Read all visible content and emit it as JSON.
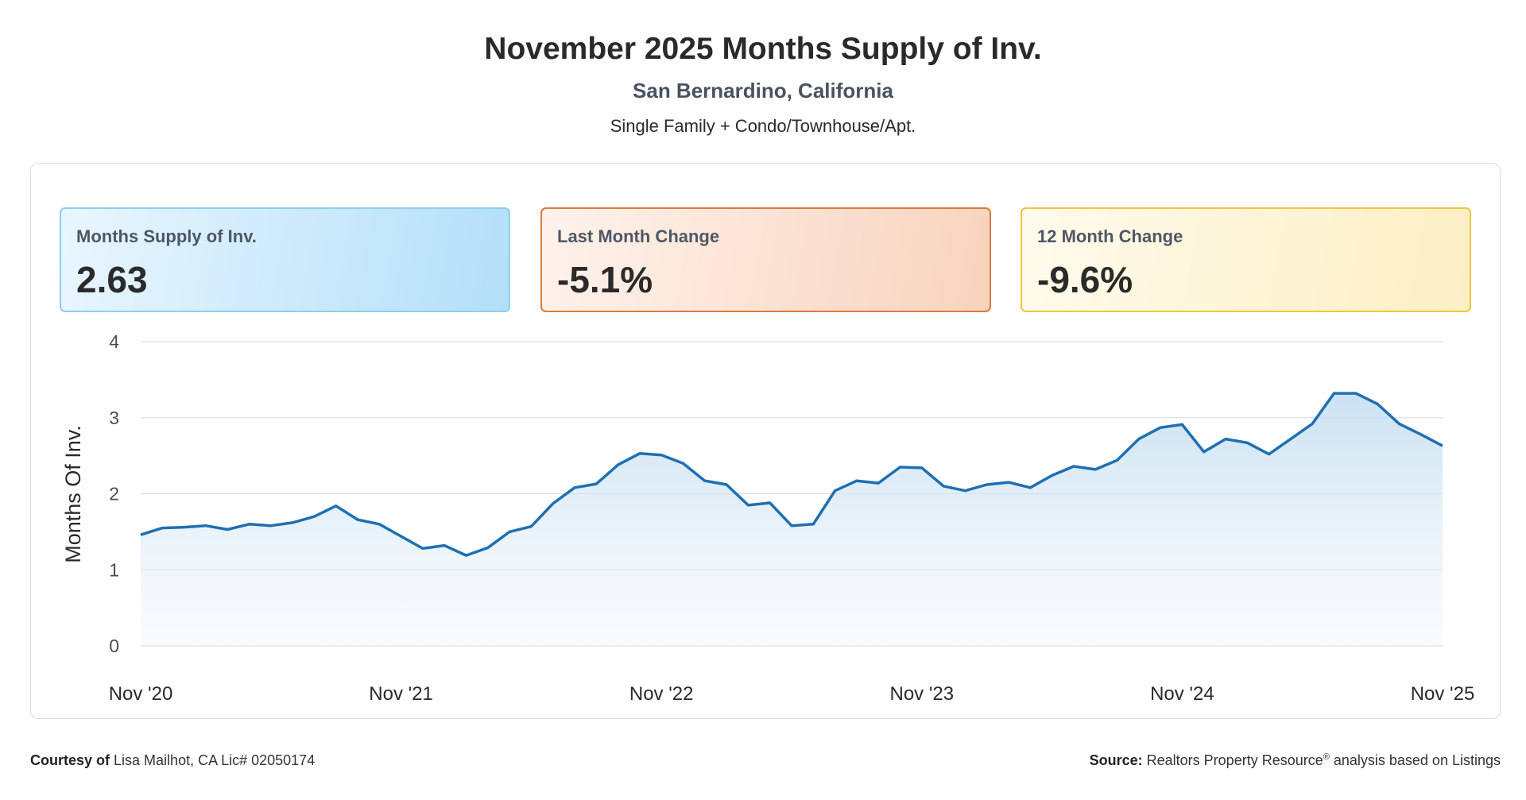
{
  "header": {
    "title": "November 2025 Months Supply of Inv.",
    "subtitle": "San Bernardino, California",
    "property_types": "Single Family + Condo/Townhouse/Apt."
  },
  "cards": [
    {
      "label": "Months Supply of Inv.",
      "value": "2.63"
    },
    {
      "label": "Last Month Change",
      "value": "-5.1%"
    },
    {
      "label": "12 Month Change",
      "value": "-9.6%"
    }
  ],
  "colors": {
    "line": "#1f6fb2",
    "grid": "#e1e4e8",
    "card1_border": "#8fcdf0",
    "card2_border": "#dd7a3f",
    "card3_border": "#efc63e"
  },
  "chart_data": {
    "type": "area",
    "ylabel": "Months Of Inv.",
    "ylim": [
      0,
      4
    ],
    "yticks": [
      "0",
      "1",
      "2",
      "3",
      "4"
    ],
    "xtick_labels": [
      "Nov '20",
      "Nov '21",
      "Nov '22",
      "Nov '23",
      "Nov '24",
      "Nov '25"
    ],
    "x_start": "Nov 2020",
    "x_end": "Nov 2025",
    "grid": true,
    "series": [
      {
        "values": [
          1.46,
          1.55,
          1.56,
          1.58,
          1.53,
          1.6,
          1.58,
          1.62,
          1.7,
          1.84,
          1.66,
          1.6,
          1.44,
          1.28,
          1.32,
          1.19,
          1.29,
          1.5,
          1.57,
          1.87,
          2.08,
          2.13,
          2.38,
          2.53,
          2.51,
          2.4,
          2.17,
          2.12,
          1.85,
          1.88,
          1.58,
          1.6,
          2.04,
          2.17,
          2.14,
          2.35,
          2.34,
          2.1,
          2.04,
          2.12,
          2.15,
          2.08,
          2.24,
          2.36,
          2.32,
          2.44,
          2.72,
          2.87,
          2.91,
          2.55,
          2.72,
          2.67,
          2.52,
          2.72,
          2.92,
          3.32,
          3.32,
          3.18,
          2.92,
          2.78,
          2.63
        ]
      }
    ]
  },
  "footer": {
    "courtesy_label": "Courtesy of",
    "courtesy_text": "Lisa Mailhot, CA Lic# 02050174",
    "source_label": "Source:",
    "source_text_1": "Realtors Property Resource",
    "source_sup": "®",
    "source_text_2": "analysis based on Listings"
  }
}
